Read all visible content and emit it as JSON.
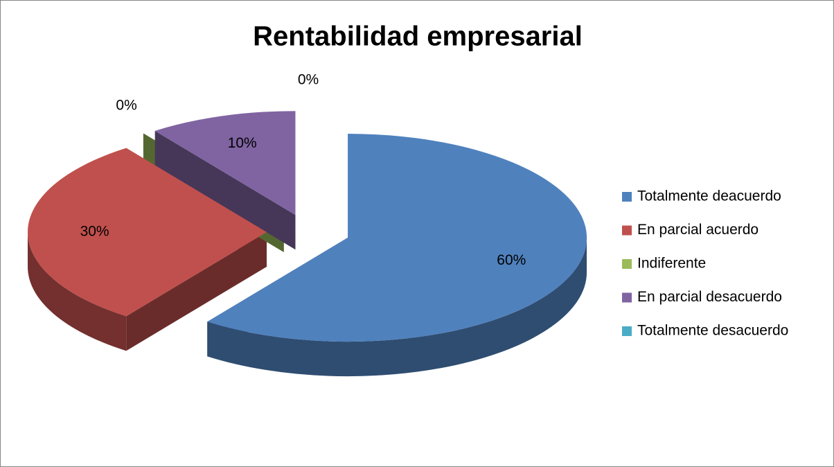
{
  "chart_data": {
    "type": "pie",
    "title": "Rentabilidad empresarial",
    "categories": [
      "Totalmente deacuerdo",
      "En parcial acuerdo",
      "Indiferente",
      "En parcial desacuerdo",
      "Totalmente desacuerdo"
    ],
    "values": [
      60,
      30,
      0,
      10,
      0
    ],
    "value_labels": [
      "60%",
      "30%",
      "0%",
      "10%",
      "0%"
    ],
    "colors": [
      "#4f81bd",
      "#c0504d",
      "#9bbb59",
      "#8064a2",
      "#4bacc6"
    ],
    "legend": "right"
  }
}
